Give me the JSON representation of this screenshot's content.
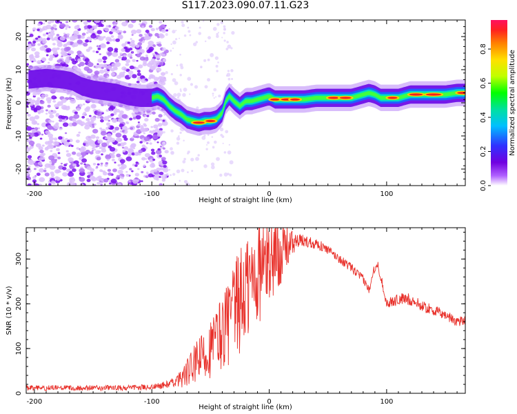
{
  "title": "S117.2023.090.07.11.G23",
  "chart_data": [
    {
      "type": "heatmap",
      "xlabel": "Height of straight line (km)",
      "ylabel": "Frequency (Hz)",
      "xlim": [
        -207,
        167
      ],
      "ylim": [
        -25,
        25
      ],
      "xticks": [
        -200,
        -100,
        0,
        100
      ],
      "yticks": [
        -20,
        -10,
        0,
        10,
        20
      ],
      "ridge": {
        "x": [
          -205,
          -190,
          -175,
          -168,
          -160,
          -150,
          -140,
          -130,
          -120,
          -110,
          -100,
          -95,
          -90,
          -85,
          -80,
          -75,
          -70,
          -65,
          -60,
          -55,
          -50,
          -45,
          -40,
          -37,
          -34,
          -30,
          -25,
          -20,
          -15,
          -10,
          -5,
          0,
          5,
          10,
          15,
          20,
          30,
          40,
          50,
          60,
          70,
          80,
          85,
          90,
          95,
          100,
          110,
          120,
          130,
          140,
          150,
          160,
          167
        ],
        "y": [
          7,
          7.5,
          7,
          6.5,
          5,
          4,
          3.5,
          3,
          2,
          1.5,
          1.5,
          2,
          1,
          -1,
          -2.5,
          -3.5,
          -5,
          -5.5,
          -6,
          -5.5,
          -5.5,
          -5,
          -3,
          0.5,
          2,
          0.5,
          -1,
          0.5,
          0.5,
          1,
          1.5,
          2,
          1,
          1,
          1,
          1,
          1,
          1.5,
          1.5,
          1.5,
          1.5,
          2.5,
          3,
          2.5,
          1.5,
          1.5,
          1.5,
          2.5,
          2.5,
          2.5,
          2.5,
          3,
          3
        ]
      },
      "colorbar": {
        "label": "Normalized spectral amplitude",
        "ticks": [
          "0.0",
          "0.2",
          "0.4",
          "0.6",
          "0.8"
        ],
        "tick_values": [
          0,
          0.2,
          0.4,
          0.6,
          0.8
        ],
        "range": [
          0,
          0.97
        ],
        "colors": [
          "#ffffff",
          "#b060ff",
          "#7000e0",
          "#3030ff",
          "#00c0ff",
          "#00e0a0",
          "#00ff00",
          "#c0ff00",
          "#ffe000",
          "#ff8000",
          "#ff2020",
          "#ff1060"
        ]
      }
    },
    {
      "type": "line",
      "xlabel": "Height of straight line (km)",
      "ylabel": "SNR (10 * v/v)",
      "xlim": [
        -207,
        167
      ],
      "ylim": [
        0,
        370
      ],
      "xticks": [
        -200,
        -100,
        0,
        100
      ],
      "yticks": [
        0,
        100,
        200,
        300
      ],
      "series": [
        {
          "color": "#e8302a",
          "x": [
            -207,
            -180,
            -150,
            -120,
            -100,
            -90,
            -80,
            -70,
            -60,
            -50,
            -40,
            -30,
            -20,
            -10,
            0,
            10,
            20,
            25,
            30,
            40,
            50,
            60,
            70,
            80,
            85,
            88,
            92,
            96,
            100,
            110,
            120,
            130,
            140,
            150,
            160,
            167
          ],
          "y": [
            12,
            12,
            12,
            12,
            14,
            18,
            25,
            45,
            75,
            100,
            140,
            180,
            230,
            270,
            300,
            320,
            335,
            340,
            340,
            335,
            320,
            300,
            280,
            255,
            230,
            270,
            290,
            250,
            200,
            210,
            210,
            195,
            185,
            175,
            160,
            165
          ],
          "noise": [
            6,
            6,
            6,
            6,
            6,
            8,
            10,
            30,
            45,
            60,
            80,
            100,
            120,
            110,
            90,
            70,
            25,
            15,
            15,
            12,
            10,
            10,
            10,
            10,
            10,
            10,
            10,
            10,
            10,
            14,
            14,
            12,
            12,
            12,
            12,
            12
          ]
        }
      ]
    }
  ]
}
